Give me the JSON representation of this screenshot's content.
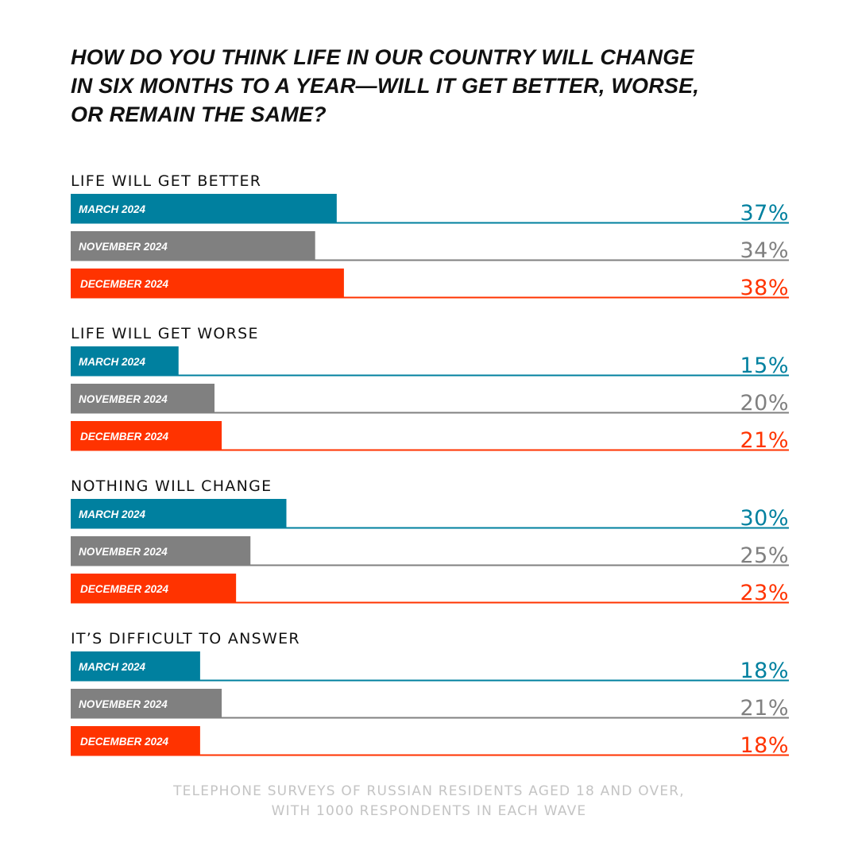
{
  "title_lines": [
    "HOW DO YOU THINK LIFE IN OUR COUNTRY WILL CHANGE",
    "IN SIX MONTHS TO A YEAR—WILL IT GET BETTER, WORSE,",
    "OR REMAIN THE SAME?"
  ],
  "footnote_lines": [
    "TELEPHONE SURVEYS OF RUSSIAN RESIDENTS AGED 18 AND OVER,",
    "WITH 1000 RESPONDENTS IN EACH WAVE"
  ],
  "colors": {
    "march": "#00809f",
    "november": "#808080",
    "december": "#ff3300"
  },
  "chart_data": {
    "type": "bar",
    "orientation": "horizontal",
    "unit": "%",
    "xlim": [
      0,
      100
    ],
    "series": [
      {
        "name": "MARCH 2024",
        "color": "#00809f"
      },
      {
        "name": "NOVEMBER 2024",
        "color": "#808080"
      },
      {
        "name": "DECEMBER 2024",
        "color": "#ff3300"
      }
    ],
    "groups": [
      {
        "label": "LIFE WILL GET BETTER",
        "values": [
          37,
          34,
          38
        ],
        "labels": [
          "37%",
          "34%",
          "38%"
        ]
      },
      {
        "label": "LIFE WILL GET WORSE",
        "values": [
          15,
          20,
          21
        ],
        "labels": [
          "15%",
          "20%",
          "21%"
        ]
      },
      {
        "label": "NOTHING WILL CHANGE",
        "values": [
          30,
          25,
          23
        ],
        "labels": [
          "30%",
          "25%",
          "23%"
        ]
      },
      {
        "label": "IT’S DIFFICULT TO ANSWER",
        "values": [
          18,
          21,
          18
        ],
        "labels": [
          "18%",
          "21%",
          "18%"
        ]
      }
    ]
  }
}
